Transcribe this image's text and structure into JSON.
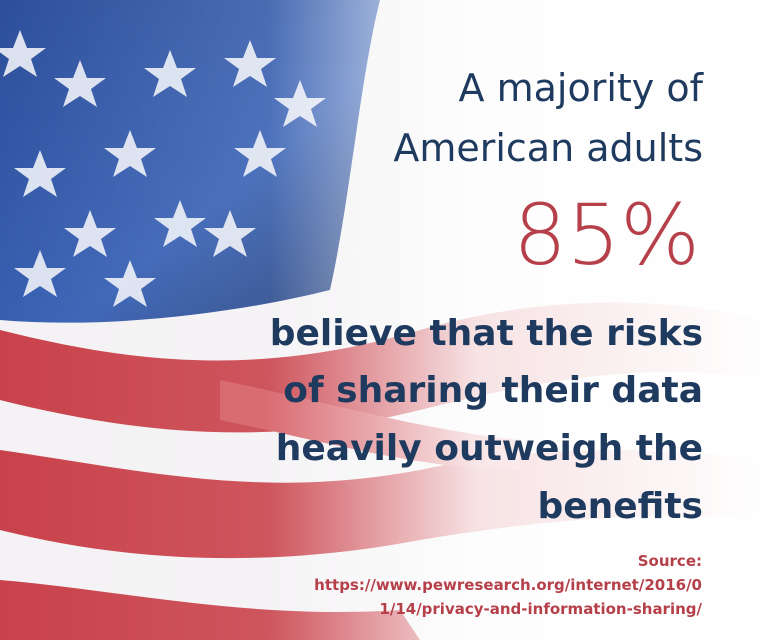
{
  "headline_lines": [
    "A majority of",
    "American adults"
  ],
  "statistic": "85%",
  "body_lines": [
    "believe that the risks",
    "of sharing their data",
    "heavily outweigh the",
    "benefits"
  ],
  "source": {
    "label": "Source:",
    "lines": [
      "https://www.pewresearch.org/internet/2016/0",
      "1/14/privacy-and-information-sharing/"
    ]
  }
}
